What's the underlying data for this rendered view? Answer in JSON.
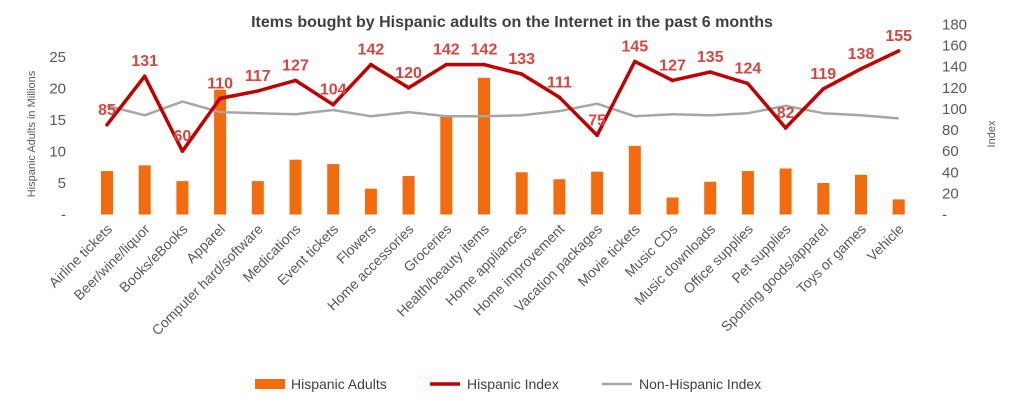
{
  "chart_data": {
    "type": "bar",
    "title": "Items bought by Hispanic adults on the Internet in the past 6 months",
    "y_left_label": "Hispanic Adults in Millions",
    "y_right_label": "Index",
    "y_left_ticks": [
      "-",
      "5",
      "10",
      "15",
      "20",
      "25"
    ],
    "y_right_ticks": [
      "-",
      "20",
      "40",
      "60",
      "80",
      "100",
      "120",
      "140",
      "160",
      "180"
    ],
    "y_left_range": [
      0,
      25
    ],
    "y_right_range": [
      0,
      180
    ],
    "grid": false,
    "legend_position": "bottom",
    "categories": [
      "Airline tickets",
      "Beer/wine/liquor",
      "Books/eBooks",
      "Apparel",
      "Computer hard/software",
      "Medications",
      "Event tickets",
      "Flowers",
      "Home accessories",
      "Groceries",
      "Health/beauty items",
      "Home appliances",
      "Home improvement",
      "Vacation packages",
      "Movie tickets",
      "Music CDs",
      "Music downloads",
      "Office supplies",
      "Pet supplies",
      "Sporting goods/apparel",
      "Toys or games",
      "Vehicle"
    ],
    "series": [
      {
        "name": "Hispanic Adults",
        "kind": "bar",
        "axis": "left",
        "color": "#F26B0F",
        "values": [
          6.9,
          7.8,
          5.3,
          19.8,
          5.3,
          8.7,
          8.0,
          4.1,
          6.1,
          15.5,
          21.7,
          6.7,
          5.6,
          6.8,
          10.9,
          2.7,
          5.2,
          6.9,
          7.3,
          5.0,
          6.3,
          2.4
        ]
      },
      {
        "name": "Hispanic Index",
        "kind": "line",
        "axis": "right",
        "color": "#C00000",
        "values": [
          85,
          131,
          60,
          110,
          117,
          127,
          104,
          142,
          120,
          142,
          142,
          133,
          111,
          75,
          145,
          127,
          135,
          124,
          82,
          119,
          138,
          155
        ],
        "labels": [
          "85",
          "131",
          "60",
          "110",
          "117",
          "127",
          "104",
          "142",
          "120",
          "142",
          "142",
          "133",
          "111",
          "75",
          "145",
          "127",
          "135",
          "124",
          "82",
          "119",
          "138",
          "155"
        ]
      },
      {
        "name": "Non-Hispanic Index",
        "kind": "line",
        "axis": "right",
        "color": "#A6A6A6",
        "values": [
          103,
          94,
          107,
          97,
          96,
          95,
          99,
          93,
          97,
          93,
          93,
          94,
          98,
          105,
          93,
          95,
          94,
          96,
          103,
          96,
          94,
          91
        ]
      }
    ]
  }
}
